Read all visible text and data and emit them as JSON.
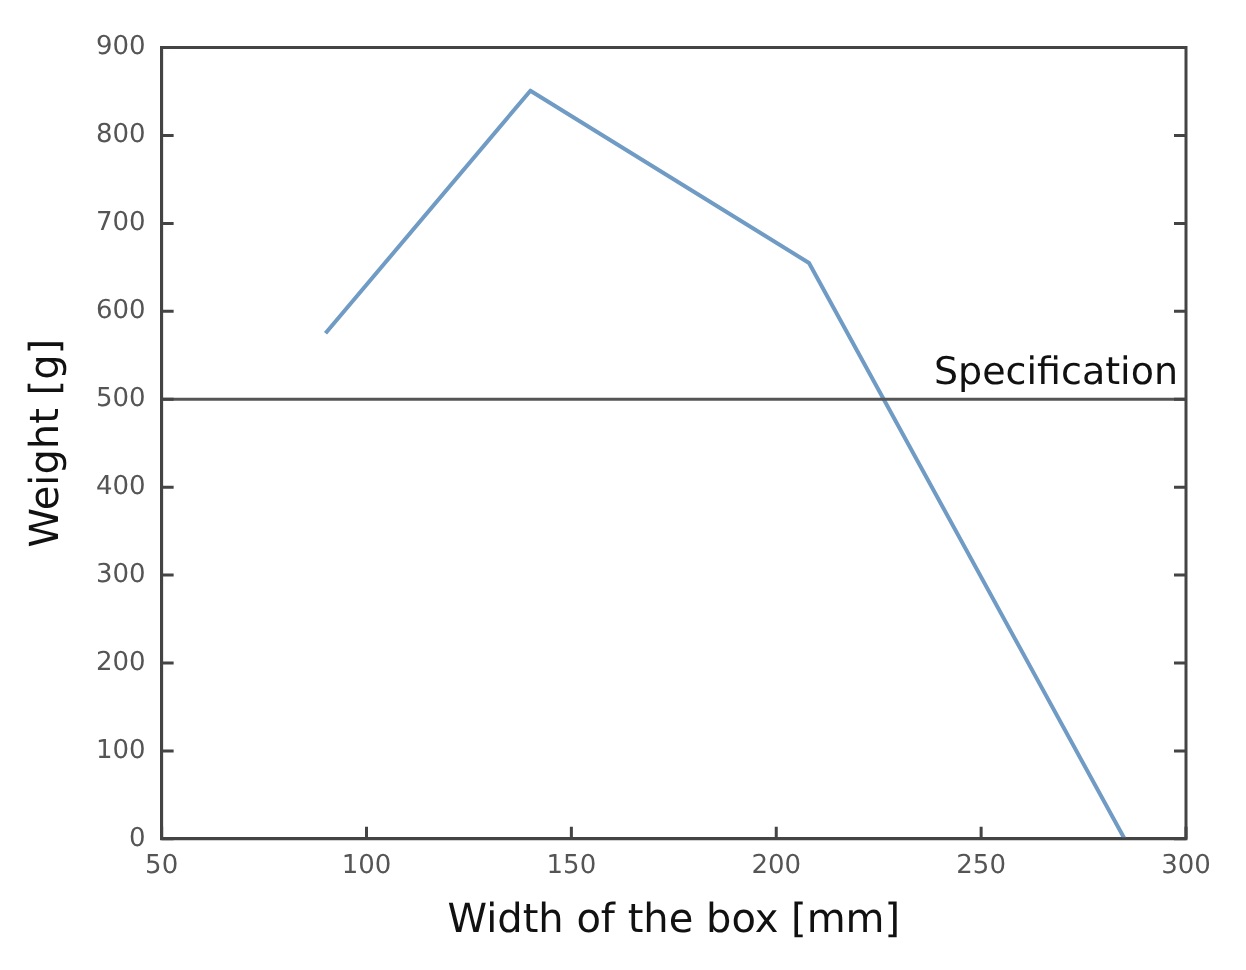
{
  "chart_data": {
    "type": "line",
    "xlabel": "Width of the box [mm]",
    "ylabel": "Weight [g]",
    "x": [
      90,
      140,
      208,
      285
    ],
    "series": [
      {
        "color": "#6f9bc4",
        "values": [
          575,
          851,
          655,
          0
        ]
      }
    ],
    "xlim": [
      50,
      300
    ],
    "xticks": [
      50,
      100,
      150,
      200,
      250,
      300
    ],
    "ylim": [
      0,
      900
    ],
    "yticks": [
      0,
      100,
      200,
      300,
      400,
      500,
      600,
      700,
      800,
      900
    ],
    "ref_lines": [
      {
        "axis": "y",
        "value": 500,
        "label": "Specification",
        "color": "#555555"
      }
    ],
    "grid": false,
    "legend": false,
    "marker": "none",
    "line_style": "solid"
  }
}
